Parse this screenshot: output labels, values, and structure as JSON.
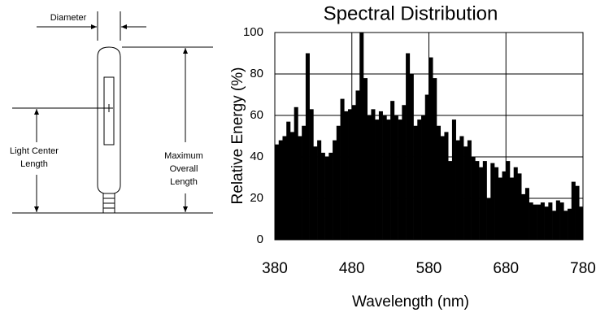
{
  "diagram": {
    "labels": [
      [
        "Diameter"
      ],
      [
        "Maximum",
        "Overall",
        "Length"
      ],
      [
        "Light Center",
        "Length"
      ]
    ]
  },
  "chart_data": {
    "type": "histogram",
    "title": "Spectral Distribution",
    "x_label": "Wavelength (nm)",
    "y_label": "Relative Energy (%)",
    "bins": [
      380,
      385,
      390,
      395,
      400,
      405,
      410,
      415,
      420,
      425,
      430,
      435,
      440,
      445,
      450,
      455,
      460,
      465,
      470,
      475,
      480,
      485,
      490,
      495,
      500,
      505,
      510,
      515,
      520,
      525,
      530,
      535,
      540,
      545,
      550,
      555,
      560,
      565,
      570,
      575,
      580,
      585,
      590,
      595,
      600,
      605,
      610,
      615,
      620,
      625,
      630,
      635,
      640,
      645,
      650,
      655,
      660,
      665,
      670,
      675,
      680,
      685,
      690,
      695,
      700,
      705,
      710,
      715,
      720,
      725,
      730,
      735,
      740,
      745,
      750,
      755,
      760,
      765,
      770,
      775,
      780
    ],
    "values": [
      46,
      48,
      50,
      57,
      52,
      64,
      50,
      55,
      90,
      63,
      45,
      48,
      42,
      40,
      42,
      48,
      55,
      68,
      62,
      63,
      65,
      72,
      100,
      78,
      60,
      63,
      58,
      62,
      60,
      58,
      67,
      60,
      58,
      65,
      90,
      80,
      55,
      58,
      60,
      70,
      88,
      78,
      55,
      50,
      52,
      38,
      58,
      48,
      50,
      45,
      48,
      40,
      38,
      35,
      38,
      20,
      37,
      35,
      30,
      33,
      38,
      30,
      35,
      32,
      22,
      25,
      18,
      17,
      17,
      18,
      16,
      18,
      14,
      19,
      18,
      14,
      15,
      28,
      26,
      16
    ],
    "color": "#000000",
    "xlim": [
      380,
      780
    ],
    "xticks": [
      380,
      480,
      580,
      680,
      780
    ],
    "ylim": [
      0,
      100
    ],
    "yticks": [
      0,
      20,
      40,
      60,
      80,
      100
    ],
    "grid": true
  }
}
